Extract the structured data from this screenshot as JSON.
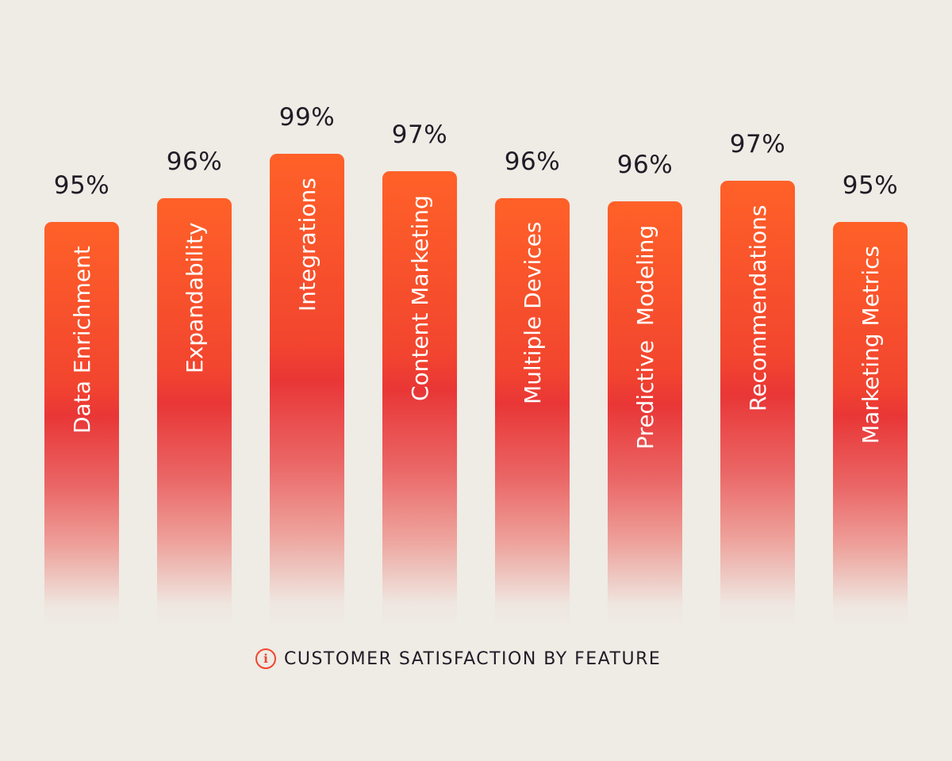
{
  "chart_data": {
    "type": "bar",
    "title": "CUSTOMER SATISFACTION BY FEATURE",
    "categories": [
      "Data Enrichment",
      "Expandability",
      "Integrations",
      "Content Marketing",
      "Multiple Devices",
      "Predictive  Modeling",
      "Recommendations",
      "Marketing Metrics"
    ],
    "values": [
      95,
      96,
      99,
      97,
      96,
      96,
      97,
      95
    ],
    "value_labels": [
      "95%",
      "96%",
      "99%",
      "97%",
      "96%",
      "96%",
      "97%",
      "95%"
    ],
    "xlabel": "",
    "ylabel": "",
    "grid": false,
    "legend": "none",
    "colors": {
      "bar_top": "#ff6128",
      "bar_mid": "#e93636",
      "bar_fade": "#efebe5",
      "text": "#221b26",
      "background": "#efebe5"
    }
  },
  "caption": {
    "icon": "info-icon",
    "icon_glyph": "i",
    "text": "CUSTOMER SATISFACTION BY FEATURE"
  }
}
